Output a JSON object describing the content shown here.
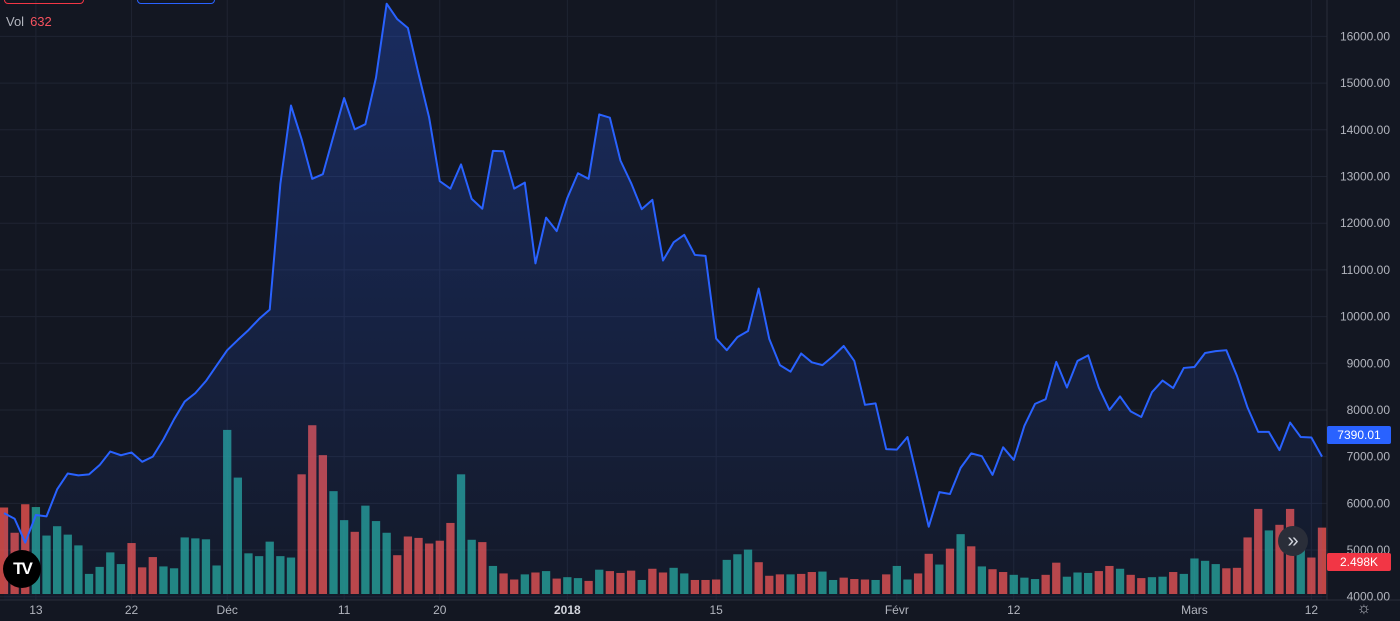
{
  "legend": {
    "label": "Vol",
    "value": "632"
  },
  "logo": {
    "text": "TV"
  },
  "price_badge": {
    "value": "7390.01",
    "color": "#2962ff"
  },
  "volume_badge": {
    "value": "2.498K",
    "color": "#f23645"
  },
  "colors": {
    "background": "#131722",
    "grid": "#1f2432",
    "line": "#2962ff",
    "volume_up": "#26a69a",
    "volume_down": "#ef5350",
    "axis_text": "#b2b5be"
  },
  "chart_data": {
    "type": "area",
    "title": "",
    "xlabel": "",
    "ylabel": "",
    "ylim": [
      3930,
      16780
    ],
    "yticks": [
      4000,
      5000,
      6000,
      7000,
      8000,
      9000,
      10000,
      11000,
      12000,
      13000,
      14000,
      15000,
      16000
    ],
    "ytick_labels": [
      "4000.00",
      "5000.00",
      "6000.00",
      "7000.00",
      "8000.00",
      "9000.00",
      "10000.00",
      "11000.00",
      "12000.00",
      "13000.00",
      "14000.00",
      "15000.00",
      "16000.00"
    ],
    "xticks": [
      {
        "label": "13",
        "index": 3
      },
      {
        "label": "22",
        "index": 12
      },
      {
        "label": "Déc",
        "index": 21
      },
      {
        "label": "11",
        "index": 32
      },
      {
        "label": "20",
        "index": 41
      },
      {
        "label": "2018",
        "index": 53
      },
      {
        "label": "15",
        "index": 67
      },
      {
        "label": "Févr",
        "index": 84
      },
      {
        "label": "12",
        "index": 95
      },
      {
        "label": "Mars",
        "index": 112
      },
      {
        "label": "12",
        "index": 123
      }
    ],
    "grid": true,
    "series": [
      {
        "type": "line",
        "values": [
          5790,
          5670,
          5160,
          5750,
          5720,
          6300,
          6640,
          6600,
          6620,
          6820,
          7110,
          7030,
          7090,
          6890,
          7000,
          7370,
          7800,
          8180,
          8360,
          8620,
          8950,
          9280,
          9500,
          9710,
          9950,
          10150,
          12840,
          14520,
          13800,
          12950,
          13050,
          13870,
          14680,
          14010,
          14120,
          15120,
          16700,
          16370,
          16180,
          15200,
          14260,
          12900,
          12740,
          13260,
          12520,
          12310,
          13550,
          13540,
          12740,
          12870,
          11140,
          12120,
          11830,
          12540,
          13070,
          12950,
          14330,
          14260,
          13340,
          12860,
          12300,
          12500,
          11200,
          11590,
          11750,
          11320,
          11300,
          9530,
          9280,
          9560,
          9690,
          10600,
          9520,
          8960,
          8820,
          9210,
          9020,
          8960,
          9150,
          9370,
          9050,
          8110,
          8140,
          7160,
          7150,
          7420,
          6470,
          5500,
          6240,
          6200,
          6760,
          7070,
          7010,
          6610,
          7200,
          6930,
          7660,
          8130,
          8230,
          9030,
          8480,
          9050,
          9170,
          8480,
          8000,
          8290,
          7970,
          7850,
          8380,
          8630,
          8470,
          8900,
          8920,
          9220,
          9260,
          9280,
          8730,
          8050,
          7530,
          7530,
          7140,
          7730,
          7420,
          7410,
          7000
        ]
      },
      {
        "type": "volume",
        "values": [
          1850,
          1310,
          1920,
          1860,
          1250,
          1450,
          1270,
          1040,
          430,
          580,
          890,
          640,
          1090,
          570,
          790,
          590,
          550,
          1210,
          1190,
          1170,
          610,
          3510,
          2490,
          870,
          810,
          1120,
          810,
          780,
          2560,
          3610,
          2970,
          2200,
          1580,
          1330,
          1890,
          1560,
          1310,
          830,
          1230,
          1200,
          1080,
          1140,
          1520,
          2560,
          1160,
          1110,
          600,
          440,
          310,
          420,
          460,
          490,
          330,
          360,
          340,
          280,
          520,
          490,
          450,
          500,
          300,
          540,
          460,
          560,
          440,
          300,
          300,
          310,
          730,
          850,
          950,
          680,
          390,
          420,
          420,
          430,
          470,
          480,
          300,
          350,
          320,
          310,
          300,
          420,
          600,
          310,
          440,
          860,
          630,
          970,
          1280,
          1020,
          590,
          530,
          470,
          410,
          350,
          320,
          410,
          670,
          370,
          460,
          450,
          490,
          600,
          540,
          410,
          340,
          360,
          370,
          470,
          430,
          760,
          710,
          640,
          550,
          560,
          1210,
          1820,
          1360,
          1480,
          1820,
          1070,
          780,
          1420
        ],
        "directions": [
          "d",
          "d",
          "d",
          "u",
          "u",
          "u",
          "u",
          "u",
          "u",
          "u",
          "u",
          "u",
          "d",
          "d",
          "d",
          "u",
          "u",
          "u",
          "u",
          "u",
          "u",
          "u",
          "u",
          "u",
          "u",
          "u",
          "u",
          "u",
          "d",
          "d",
          "d",
          "u",
          "u",
          "d",
          "u",
          "u",
          "u",
          "d",
          "d",
          "d",
          "d",
          "d",
          "d",
          "u",
          "u",
          "d",
          "u",
          "d",
          "d",
          "u",
          "d",
          "u",
          "d",
          "u",
          "u",
          "d",
          "u",
          "d",
          "d",
          "d",
          "u",
          "d",
          "d",
          "u",
          "u",
          "d",
          "d",
          "d",
          "u",
          "u",
          "u",
          "d",
          "d",
          "d",
          "u",
          "d",
          "d",
          "u",
          "u",
          "d",
          "d",
          "d",
          "u",
          "d",
          "u",
          "u",
          "d",
          "d",
          "u",
          "d",
          "u",
          "d",
          "u",
          "d",
          "d",
          "u",
          "u",
          "u",
          "d",
          "d",
          "u",
          "u",
          "u",
          "d",
          "d",
          "u",
          "d",
          "d",
          "u",
          "u",
          "d",
          "u",
          "u",
          "u",
          "u",
          "d",
          "d",
          "d",
          "d",
          "u",
          "d",
          "d",
          "u",
          "d",
          "d"
        ]
      }
    ],
    "volume_ylim": [
      0,
      4000
    ]
  }
}
